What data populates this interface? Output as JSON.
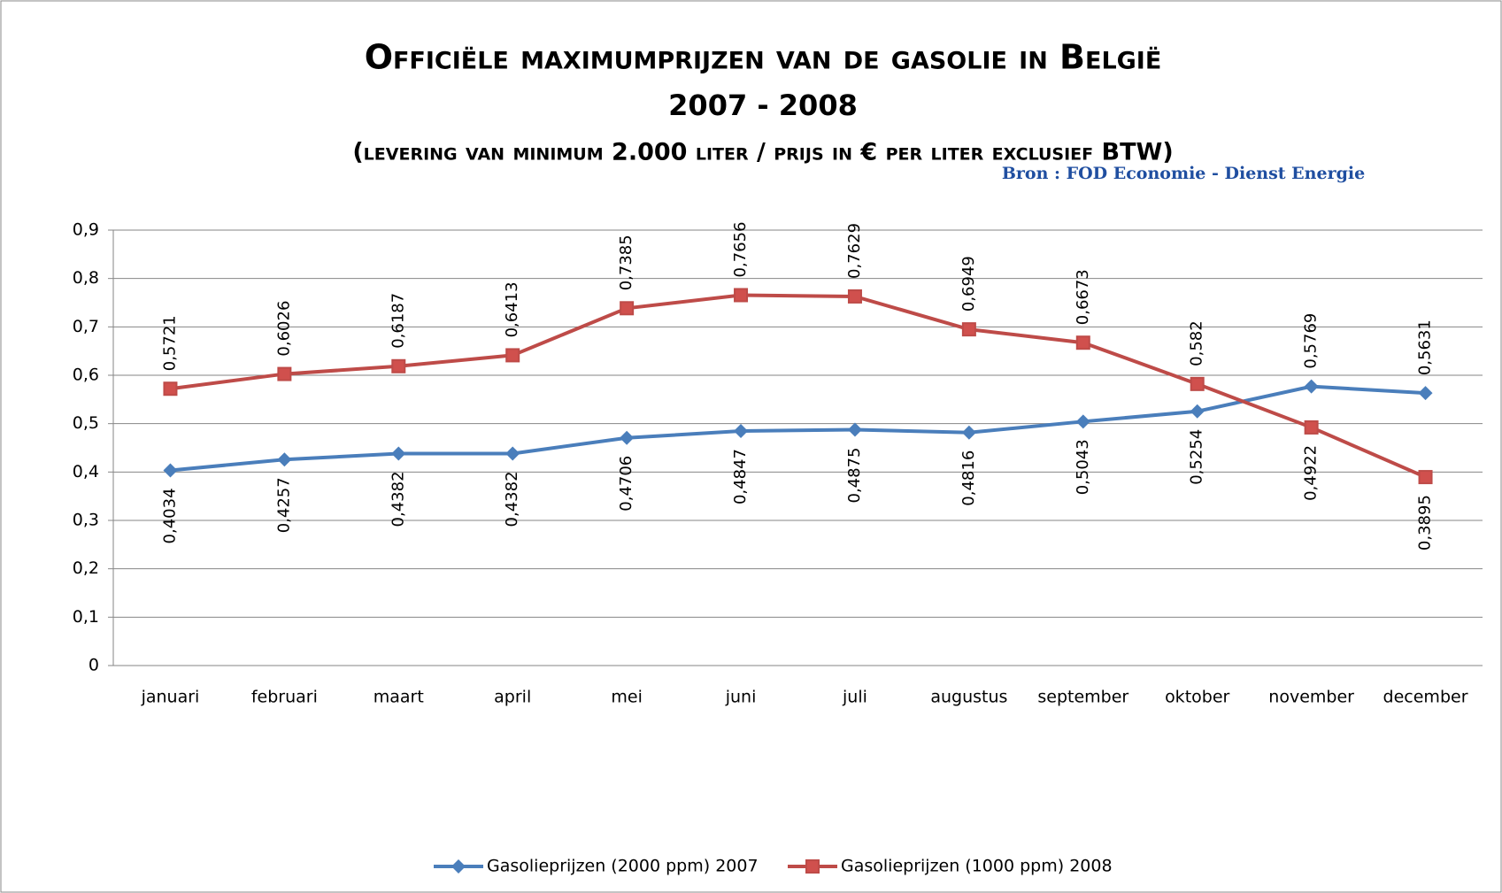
{
  "chart_data": {
    "type": "line",
    "title": "Officiële maximumprijzen van de gasolie in België",
    "subtitle": "2007 - 2008",
    "note": "(levering van minimum 2.000 liter / prijs in € per liter exclusief BTW)",
    "source": "Bron : FOD Economie - Dienst Energie",
    "categories": [
      "januari",
      "februari",
      "maart",
      "april",
      "mei",
      "juni",
      "juli",
      "augustus",
      "september",
      "oktober",
      "november",
      "december"
    ],
    "series": [
      {
        "name": "Gasolieprijzen (2000 ppm) 2007",
        "color": "#4a7ebb",
        "marker": "diamond",
        "values": [
          0.4034,
          0.4257,
          0.4382,
          0.4382,
          0.4706,
          0.4847,
          0.4875,
          0.4816,
          0.5043,
          0.5254,
          0.5769,
          0.5631
        ],
        "value_labels": [
          "0,4034",
          "0,4257",
          "0,4382",
          "0,4382",
          "0,4706",
          "0,4847",
          "0,4875",
          "0,4816",
          "0,5043",
          "0,5254",
          "0,5769",
          "0,5631"
        ]
      },
      {
        "name": "Gasolieprijzen (1000 ppm) 2008",
        "color": "#be4b48",
        "marker": "square",
        "values": [
          0.5721,
          0.6026,
          0.6187,
          0.6413,
          0.7385,
          0.7656,
          0.7629,
          0.6949,
          0.6673,
          0.582,
          0.4922,
          0.3895
        ],
        "value_labels": [
          "0,5721",
          "0,6026",
          "0,6187",
          "0,6413",
          "0,7385",
          "0,7656",
          "0,7629",
          "0,6949",
          "0,6673",
          "0,582",
          "0,4922",
          "0,3895"
        ]
      }
    ],
    "ylim": [
      0,
      0.9
    ],
    "yticks": [
      0,
      {
        "value": 0.1,
        "label": "0,1"
      },
      {
        "value": 0.2,
        "label": "0,2"
      },
      {
        "value": 0.3,
        "label": "0,3"
      },
      {
        "value": 0.4,
        "label": "0,4"
      },
      {
        "value": 0.5,
        "label": "0,5"
      },
      {
        "value": 0.6,
        "label": "0,6"
      },
      {
        "value": 0.7,
        "label": "0,7"
      },
      {
        "value": 0.8,
        "label": "0,8"
      },
      {
        "value": 0.9,
        "label": "0,9"
      }
    ],
    "grid": true,
    "legend": "bottom"
  }
}
